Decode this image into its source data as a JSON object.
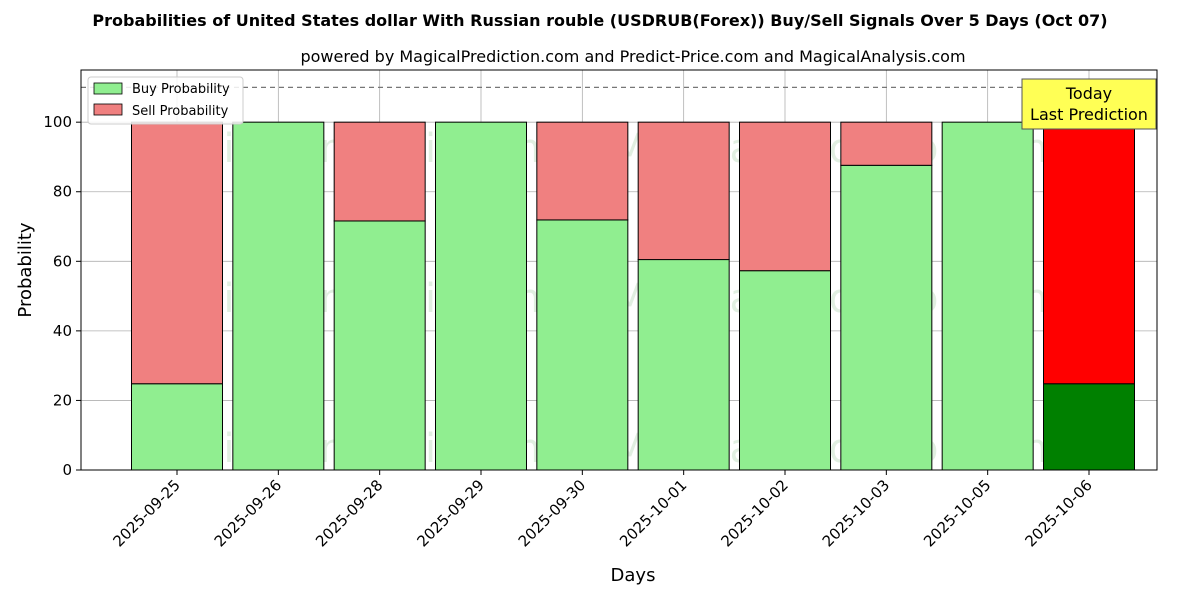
{
  "chart_data": {
    "type": "bar",
    "stacked": true,
    "title": "Probabilities of United States dollar With Russian rouble (USDRUB(Forex)) Buy/Sell Signals Over 5 Days (Oct 07)",
    "subtitle": "powered by MagicalPrediction.com and Predict-Price.com and MagicalAnalysis.com",
    "xlabel": "Days",
    "ylabel": "Probability",
    "ylim": [
      0,
      115
    ],
    "yticks": [
      0,
      20,
      40,
      60,
      80,
      100
    ],
    "reference_line": 110,
    "grid": true,
    "legend_position": "top-left",
    "categories": [
      "2025-09-25",
      "2025-09-26",
      "2025-09-28",
      "2025-09-29",
      "2025-09-30",
      "2025-10-01",
      "2025-10-02",
      "2025-10-03",
      "2025-10-05",
      "2025-10-06"
    ],
    "series": [
      {
        "name": "Buy Probability",
        "color": "#90ee90",
        "highlight_color": "#008000",
        "values": [
          24.8,
          100,
          71.6,
          100,
          71.9,
          60.5,
          57.3,
          87.6,
          100,
          24.8
        ]
      },
      {
        "name": "Sell Probability",
        "color": "#f08080",
        "highlight_color": "#ff0000",
        "values": [
          75.2,
          0,
          28.4,
          0,
          28.1,
          39.5,
          42.7,
          12.4,
          0,
          75.2
        ]
      }
    ],
    "highlight_index": 9,
    "annotation": {
      "line1": "Today",
      "line2": "Last Prediction",
      "color": "#ffff55"
    },
    "watermarks": [
      "MagicalAnalysis.com",
      "MagicalPrediction.com"
    ]
  }
}
